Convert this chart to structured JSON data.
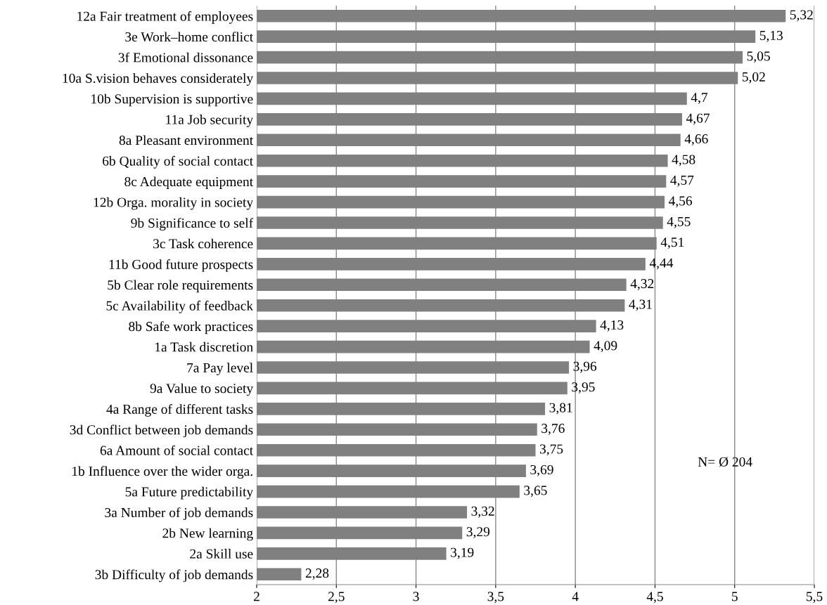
{
  "chart_data": {
    "type": "bar",
    "orientation": "horizontal",
    "categories": [
      "12a Fair treatment of employees",
      "3e Work–home conflict",
      "3f Emotional dissonance",
      "10a S.vision behaves considerately",
      "10b Supervision is supportive",
      "11a Job security",
      "8a Pleasant environment",
      "6b Quality of social contact",
      "8c Adequate equipment",
      "12b Orga. morality in society",
      "9b Significance to self",
      "3c Task coherence",
      "11b Good future prospects",
      "5b Clear role requirements",
      "5c Availability of feedback",
      "8b Safe work practices",
      "1a Task discretion",
      "7a Pay level",
      "9a Value to society",
      "4a Range of different tasks",
      "3d Conflict between job demands",
      "6a Amount of social contact",
      "1b Influence over the wider orga.",
      "5a Future predictability",
      "3a Number of job demands",
      "2b New learning",
      "2a Skill use",
      "3b Difficulty of job demands"
    ],
    "values": [
      5.32,
      5.13,
      5.05,
      5.02,
      4.7,
      4.67,
      4.66,
      4.58,
      4.57,
      4.56,
      4.55,
      4.51,
      4.44,
      4.32,
      4.31,
      4.13,
      4.09,
      3.96,
      3.95,
      3.81,
      3.76,
      3.75,
      3.69,
      3.65,
      3.32,
      3.29,
      3.19,
      2.28
    ],
    "value_labels": [
      "5,32",
      "5,13",
      "5,05",
      "5,02",
      "4,7",
      "4,67",
      "4,66",
      "4,58",
      "4,57",
      "4,56",
      "4,55",
      "4,51",
      "4,44",
      "4,32",
      "4,31",
      "4,13",
      "4,09",
      "3,96",
      "3,95",
      "3,81",
      "3,76",
      "3,75",
      "3,69",
      "3,65",
      "3,32",
      "3,29",
      "3,19",
      "2,28"
    ],
    "color": "#808080",
    "xlim": [
      2,
      5.5
    ],
    "xticks": [
      2,
      {
        "value": 2.5,
        "label": "2,5"
      },
      3,
      {
        "value": 3.5,
        "label": "3,5"
      },
      4,
      {
        "value": 4.5,
        "label": "4,5"
      },
      5,
      {
        "value": 5.5,
        "label": "5,5"
      }
    ],
    "grid": "x",
    "legend": false,
    "annotations": [
      "N= Ø 204"
    ]
  }
}
